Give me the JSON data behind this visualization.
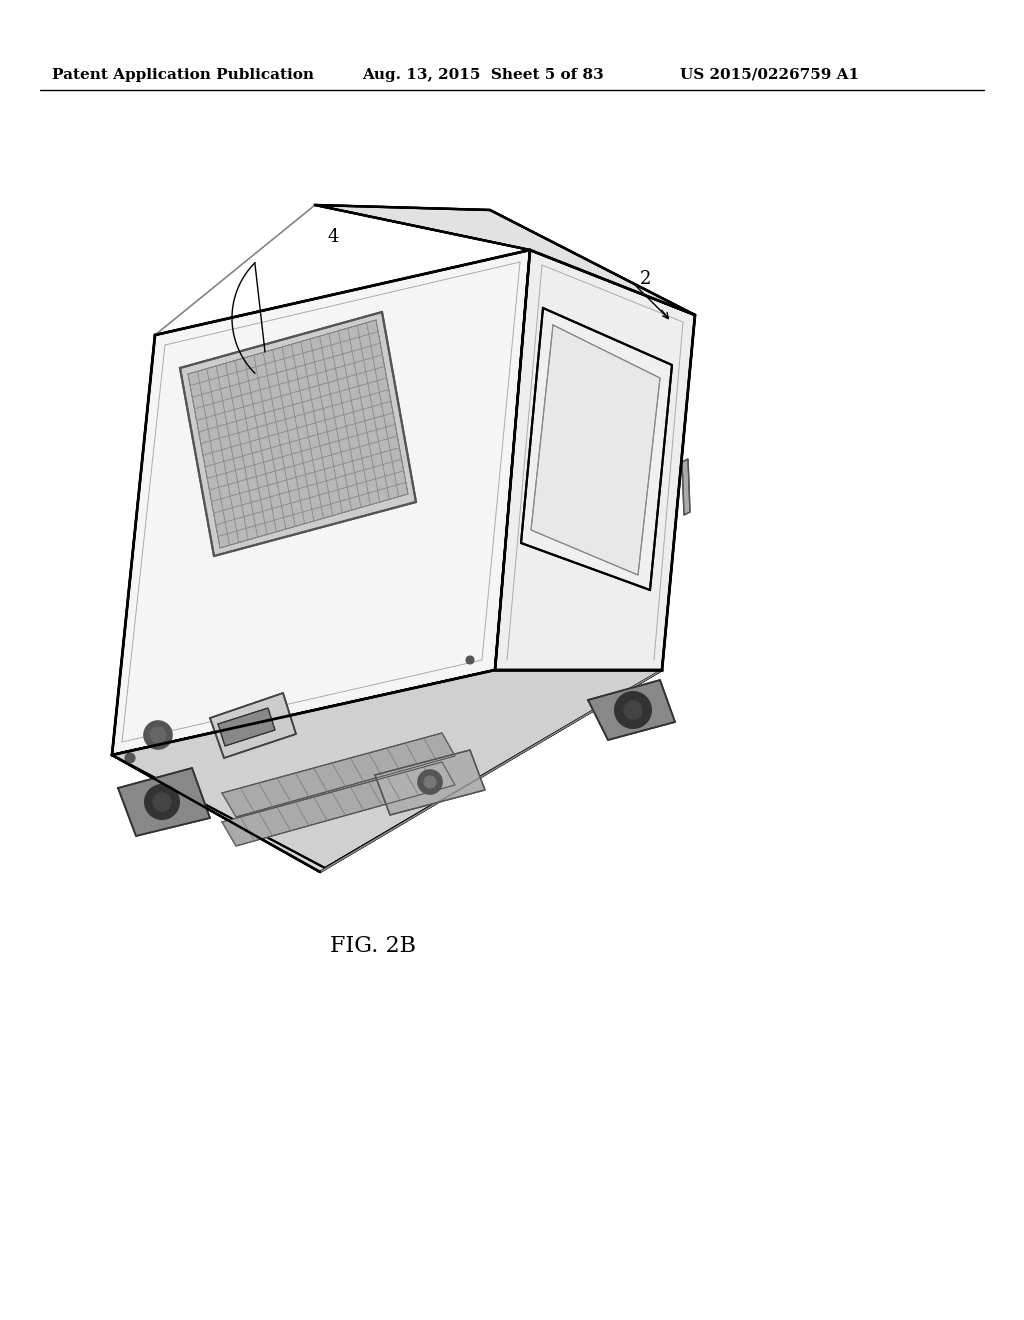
{
  "header_left": "Patent Application Publication",
  "header_mid": "Aug. 13, 2015  Sheet 5 of 83",
  "header_right": "US 2015/0226759 A1",
  "fig_label": "FIG. 2B",
  "label_4": "4",
  "label_2": "2",
  "bg_color": "#ffffff",
  "line_color": "#000000",
  "header_fontsize": 11,
  "fig_label_fontsize": 16
}
